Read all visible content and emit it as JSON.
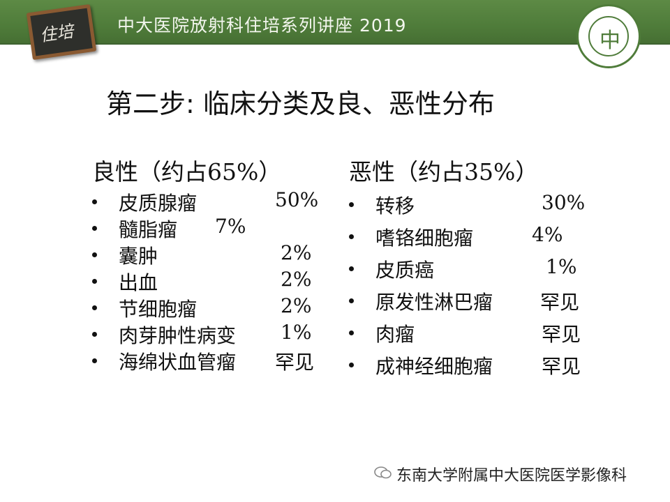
{
  "header": {
    "title": "中大医院放射科住培系列讲座 2019",
    "badge_text": "住培",
    "logo_glyph": "中",
    "accent_color": "#4f7c3a"
  },
  "heading": "第二步: 临床分类及良、恶性分布",
  "benign": {
    "title": "良性（约占65%）",
    "items": [
      {
        "name": "皮质腺瘤",
        "pct": "50%"
      },
      {
        "name": "髓脂瘤",
        "pct": "7%"
      },
      {
        "name": "囊肿",
        "pct": "2%"
      },
      {
        "name": "出血",
        "pct": "2%"
      },
      {
        "name": "节细胞瘤",
        "pct": "2%"
      },
      {
        "name": "肉芽肿性病变",
        "pct": "1%"
      },
      {
        "name": "海绵状血管瘤",
        "pct": "罕见"
      }
    ]
  },
  "malignant": {
    "title": "恶性（约占35%）",
    "items": [
      {
        "name": "转移",
        "pct": "30%"
      },
      {
        "name": "嗜铬细胞瘤",
        "pct": "4%"
      },
      {
        "name": "皮质癌",
        "pct": "1%"
      },
      {
        "name": "原发性淋巴瘤",
        "pct": "罕见"
      },
      {
        "name": "肉瘤",
        "pct": "罕见"
      },
      {
        "name": "成神经细胞瘤",
        "pct": "罕见"
      }
    ]
  },
  "footer": {
    "icon": "wechat-icon",
    "text": "东南大学附属中大医院医学影像科"
  }
}
